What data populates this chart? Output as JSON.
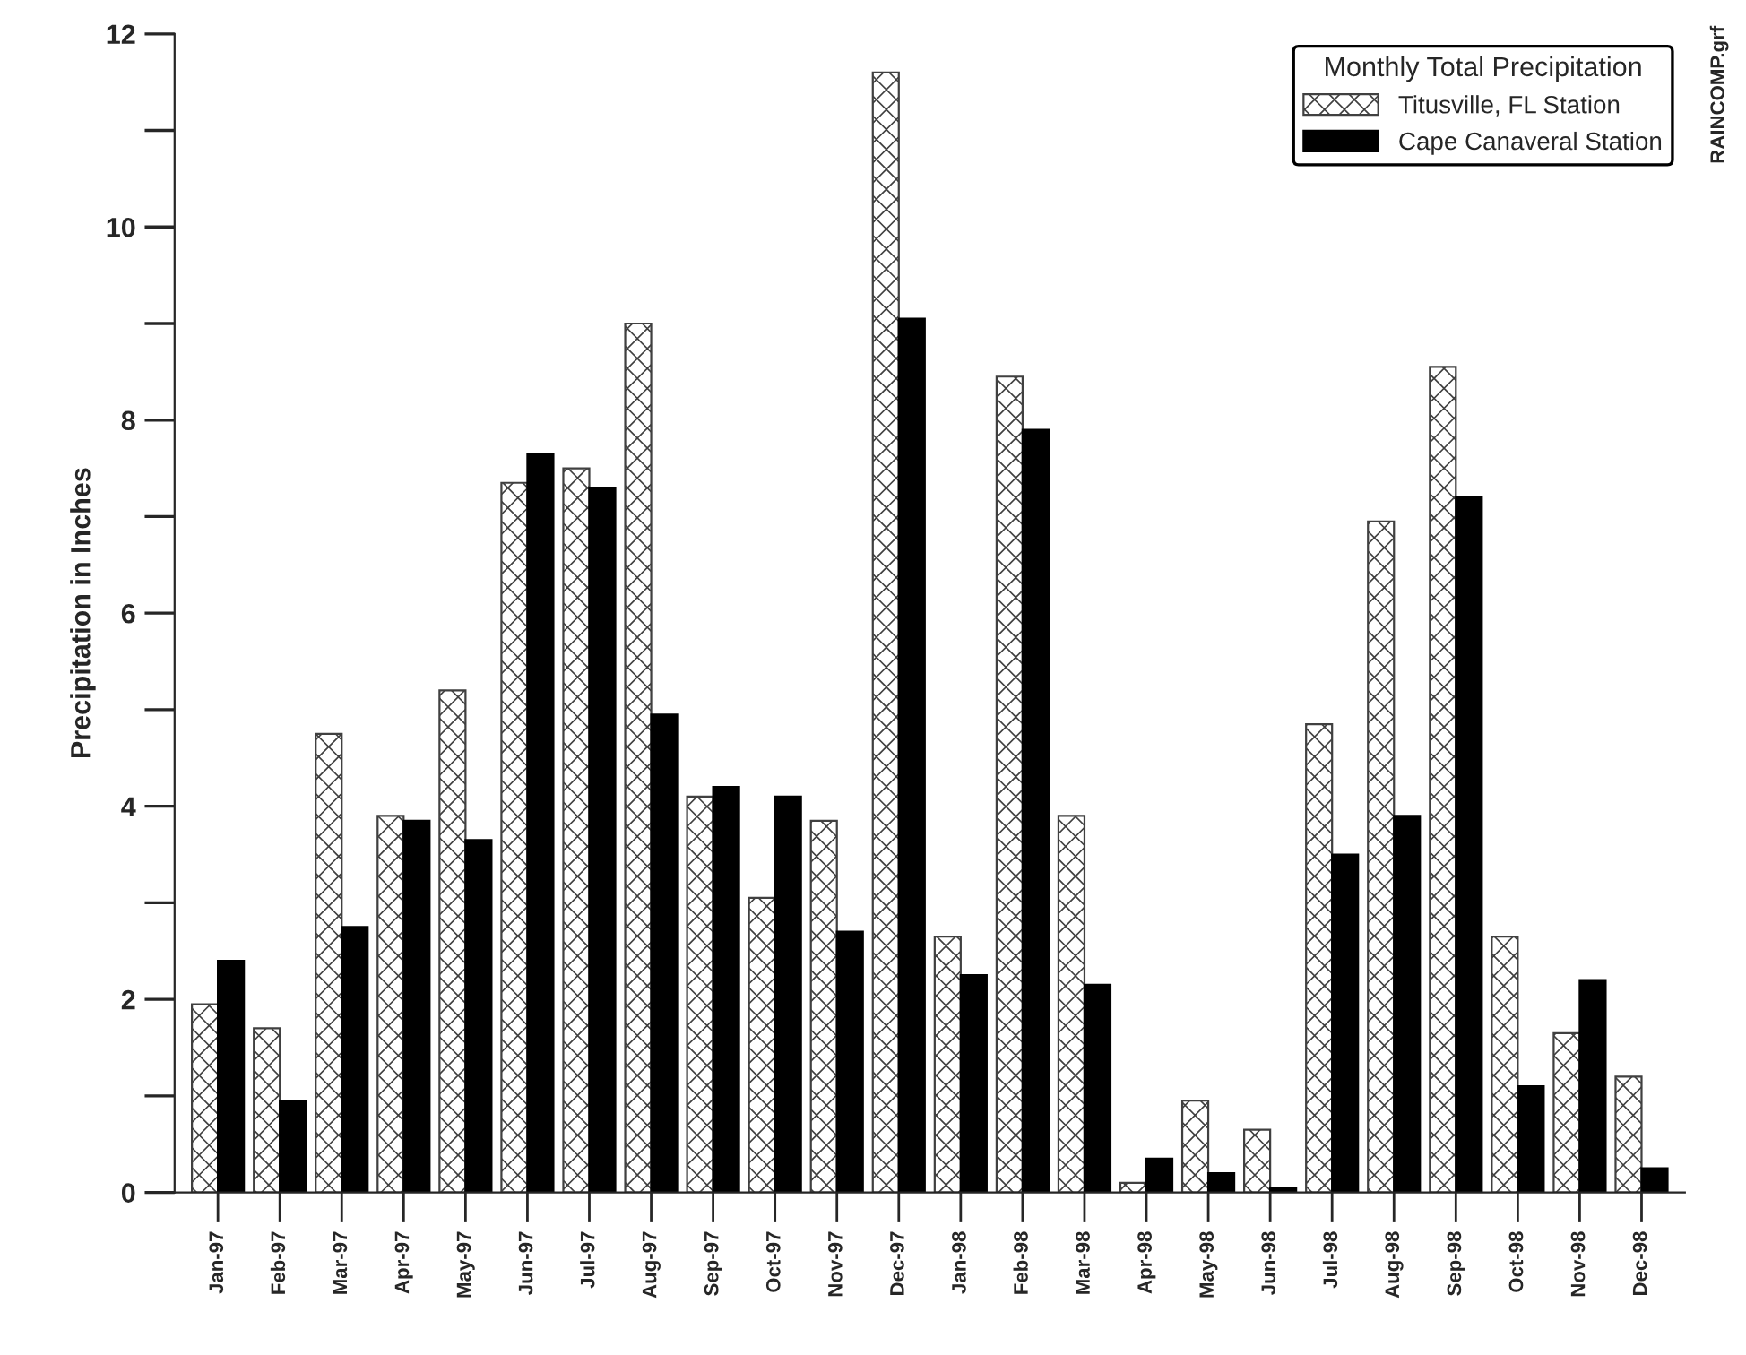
{
  "chart_data": {
    "type": "bar",
    "ylabel": "Precipitation in Inches",
    "legend_title": "Monthly Total Precipitation",
    "categories": [
      "Jan-97",
      "Feb-97",
      "Mar-97",
      "Apr-97",
      "May-97",
      "Jun-97",
      "Jul-97",
      "Aug-97",
      "Sep-97",
      "Oct-97",
      "Nov-97",
      "Dec-97",
      "Jan-98",
      "Feb-98",
      "Mar-98",
      "Apr-98",
      "May-98",
      "Jun-98",
      "Jul-98",
      "Aug-98",
      "Sep-98",
      "Oct-98",
      "Nov-98",
      "Dec-98"
    ],
    "series": [
      {
        "name": "Titusville, FL Station",
        "color": "#404040",
        "values": [
          1.95,
          1.7,
          4.75,
          3.9,
          5.2,
          7.35,
          7.5,
          9.0,
          4.1,
          3.05,
          3.85,
          11.6,
          2.65,
          8.45,
          3.9,
          0.1,
          0.95,
          0.65,
          4.85,
          6.95,
          8.55,
          2.65,
          1.65,
          1.2
        ]
      },
      {
        "name": "Cape Canaveral Station",
        "color": "#000000",
        "values": [
          2.4,
          0.95,
          2.75,
          3.85,
          3.65,
          7.65,
          7.3,
          4.95,
          4.2,
          4.1,
          2.7,
          9.05,
          2.25,
          7.9,
          2.15,
          0.35,
          0.2,
          0.05,
          3.5,
          3.9,
          7.2,
          1.1,
          2.2,
          0.25
        ]
      }
    ],
    "ylim": [
      0,
      12
    ],
    "yticks": [
      0,
      2,
      4,
      6,
      8,
      10,
      12
    ],
    "grid": false,
    "legend": "top right",
    "annotations": [
      "RAINCOMP.grf"
    ]
  }
}
